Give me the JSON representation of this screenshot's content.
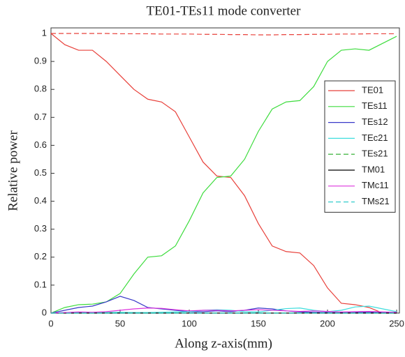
{
  "chart_data": {
    "type": "line",
    "title": "TE01-TEs11 mode converter",
    "x_label": "Along z-axis(mm)",
    "y_label": "Relative power",
    "x": [
      0,
      10,
      20,
      30,
      40,
      50,
      60,
      70,
      80,
      90,
      100,
      110,
      120,
      130,
      140,
      150,
      160,
      170,
      180,
      190,
      200,
      210,
      220,
      230,
      240,
      250
    ],
    "xlim": [
      0,
      252
    ],
    "xticks": [
      0,
      50,
      100,
      150,
      200,
      250
    ],
    "ylim": [
      0,
      1.02
    ],
    "yticks": [
      0,
      0.1,
      0.2,
      0.3,
      0.4,
      0.5,
      0.6,
      0.7,
      0.8,
      0.9,
      1
    ],
    "grid": false,
    "legend": "right",
    "series": [
      {
        "name": "TE01",
        "color": "#e8403a",
        "dash": false,
        "values": [
          1.0,
          0.96,
          0.94,
          0.94,
          0.9,
          0.85,
          0.8,
          0.765,
          0.755,
          0.72,
          0.63,
          0.54,
          0.49,
          0.485,
          0.42,
          0.32,
          0.24,
          0.22,
          0.215,
          0.17,
          0.09,
          0.035,
          0.03,
          0.02,
          0.0,
          0.0
        ]
      },
      {
        "name": "TEs11",
        "color": "#3ddc3d",
        "dash": false,
        "values": [
          0,
          0.02,
          0.03,
          0.032,
          0.04,
          0.07,
          0.14,
          0.2,
          0.205,
          0.24,
          0.33,
          0.43,
          0.485,
          0.49,
          0.55,
          0.65,
          0.73,
          0.755,
          0.76,
          0.81,
          0.9,
          0.94,
          0.945,
          0.94,
          0.965,
          0.99
        ]
      },
      {
        "name": "TEs12",
        "color": "#3838c8",
        "dash": false,
        "values": [
          0,
          0.01,
          0.02,
          0.025,
          0.04,
          0.06,
          0.045,
          0.02,
          0.015,
          0.01,
          0.005,
          0.005,
          0.008,
          0.005,
          0.01,
          0.018,
          0.015,
          0.008,
          0.004,
          0.003,
          0.002,
          0.001,
          0.002,
          0.003,
          0.002,
          0.001
        ]
      },
      {
        "name": "TEc21",
        "color": "#3ddddd",
        "dash": false,
        "values": [
          0,
          0.002,
          0.003,
          0.002,
          0.002,
          0.003,
          0.002,
          0.002,
          0.003,
          0.004,
          0.005,
          0.01,
          0.012,
          0.01,
          0.005,
          0.004,
          0.01,
          0.016,
          0.018,
          0.01,
          0.005,
          0.01,
          0.022,
          0.025,
          0.015,
          0.005
        ]
      },
      {
        "name": "TEs21",
        "color": "#22aa22",
        "dash": true,
        "values": [
          0,
          0,
          0,
          0,
          0,
          0,
          0,
          0,
          0,
          0,
          0,
          0,
          0,
          0,
          0,
          0,
          0,
          0,
          0,
          0,
          0,
          0,
          0,
          0,
          0,
          0
        ]
      },
      {
        "name": "TM01",
        "color": "#000000",
        "dash": false,
        "values": [
          0,
          0,
          0,
          0,
          0,
          0,
          0,
          0,
          0,
          0,
          0,
          0,
          0,
          0,
          0,
          0,
          0,
          0,
          0,
          0,
          0,
          0,
          0,
          0,
          0,
          0
        ]
      },
      {
        "name": "TMc11",
        "color": "#dd33dd",
        "dash": false,
        "values": [
          0,
          0.002,
          0.004,
          0.003,
          0.005,
          0.01,
          0.015,
          0.018,
          0.017,
          0.012,
          0.008,
          0.01,
          0.01,
          0.008,
          0.01,
          0.012,
          0.01,
          0.008,
          0.006,
          0.008,
          0.006,
          0.004,
          0.005,
          0.006,
          0.004,
          0.003
        ]
      },
      {
        "name": "TMs21",
        "color": "#33cccc",
        "dash": true,
        "values": [
          0,
          0,
          0,
          0,
          0,
          0,
          0,
          0,
          0,
          0,
          0,
          0,
          0,
          0,
          0,
          0,
          0,
          0,
          0,
          0,
          0,
          0,
          0,
          0,
          0,
          0
        ]
      },
      {
        "color": "#e8403a",
        "dash": true,
        "values": [
          1.0,
          1.0,
          1.0,
          1.0,
          1.0,
          0.999,
          0.999,
          0.999,
          0.998,
          0.998,
          0.998,
          0.997,
          0.997,
          0.996,
          0.996,
          0.995,
          0.995,
          0.996,
          0.996,
          0.997,
          0.997,
          0.998,
          0.998,
          0.999,
          0.999,
          0.999
        ]
      }
    ]
  }
}
